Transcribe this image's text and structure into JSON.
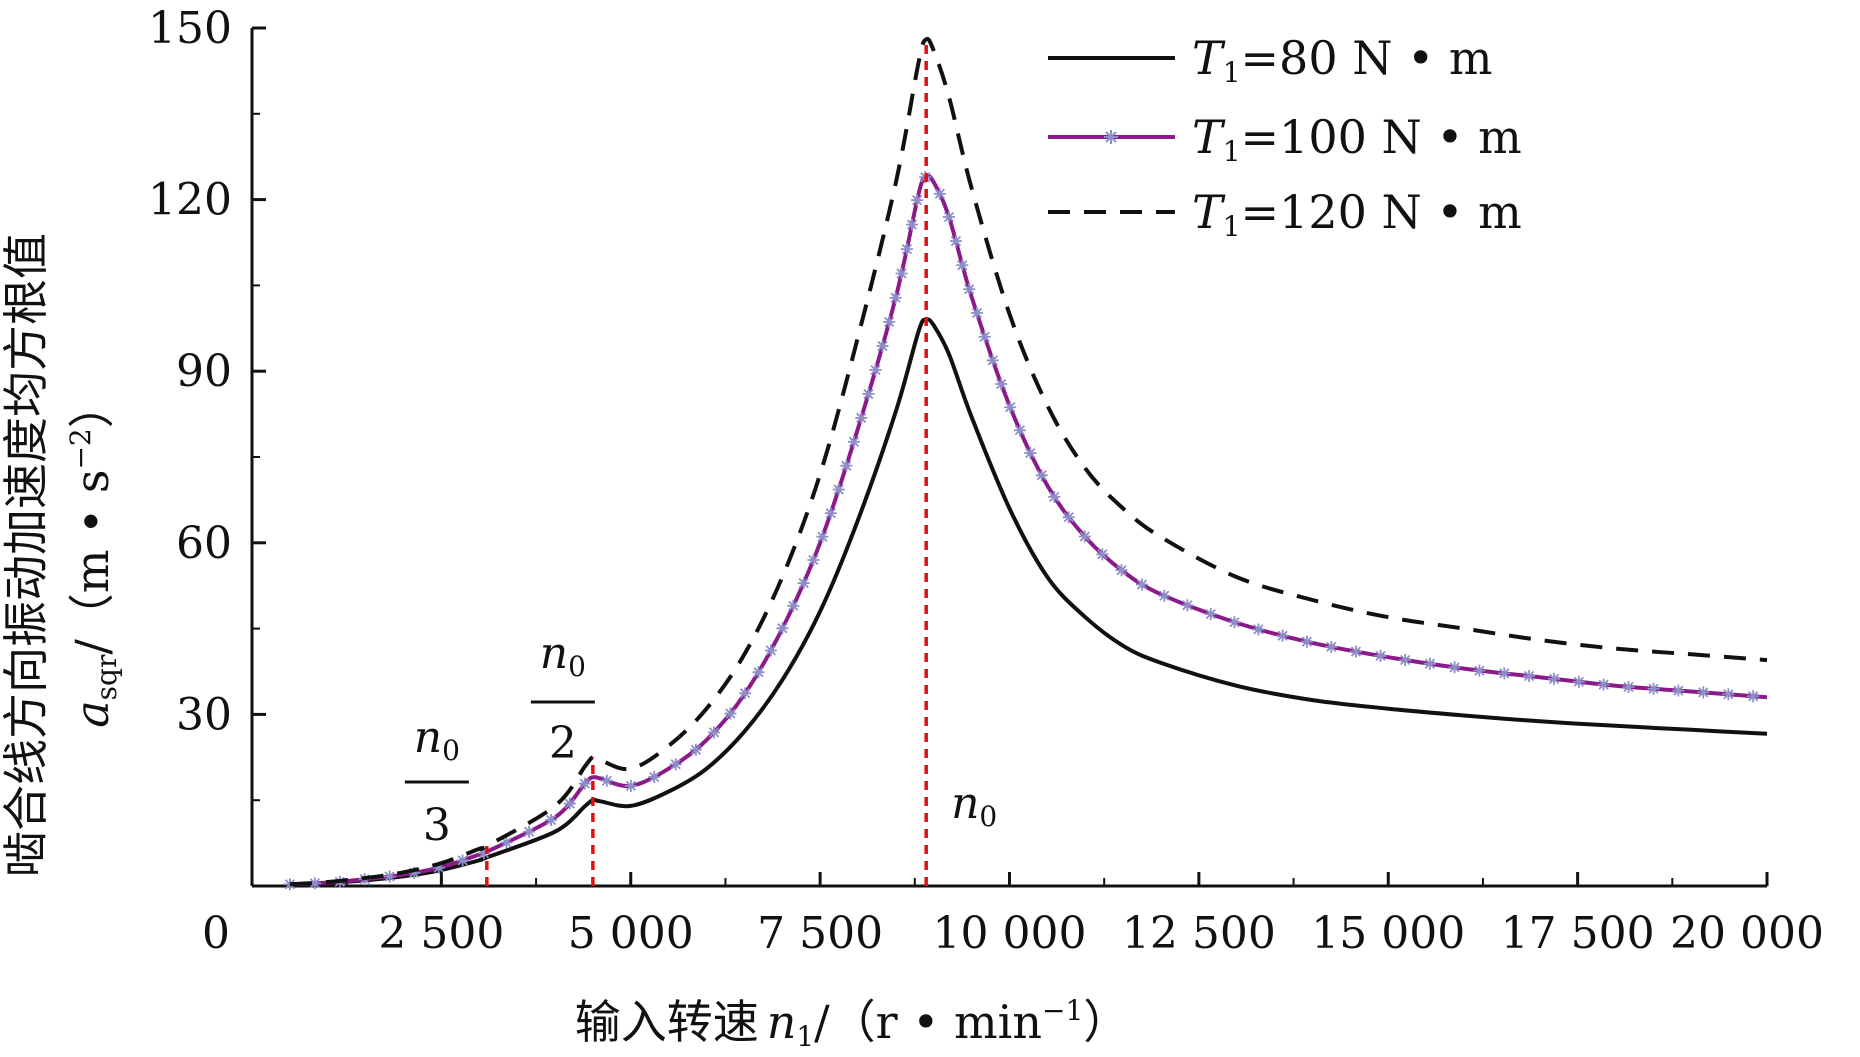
{
  "chart_data": {
    "type": "line",
    "xlabel": {
      "prefix": "输入转速",
      "var": "n",
      "sub": "1",
      "unit": "/（r • min",
      "sup": "−1",
      "close": "）"
    },
    "ylabel": {
      "prefix": "啮合线方向振动加速度均方根值",
      "var": "a",
      "sub": "sqr",
      "unit": "/（m • s",
      "sup": "−2",
      "close": "）"
    },
    "xlim": [
      0,
      20000
    ],
    "ylim": [
      0,
      150
    ],
    "x_ticks": [
      0,
      2500,
      5000,
      7500,
      10000,
      12500,
      15000,
      17500,
      20000
    ],
    "x_tick_labels": [
      "0",
      "2 500",
      "5 000",
      "7 500",
      "10 000",
      "12 500",
      "15 000",
      "17 500",
      "20 000"
    ],
    "y_ticks": [
      30,
      60,
      90,
      120,
      150
    ],
    "y_tick_labels": [
      "30",
      "60",
      "90",
      "120",
      "150"
    ],
    "grid": false,
    "legend_position": "top-right",
    "colors": {
      "s80": "#111111",
      "s100": "#8a1a8a",
      "s100_marker": "#8e8ec8",
      "s120": "#111111",
      "vline": "#e01010"
    },
    "series": [
      {
        "name_var": "T",
        "name_sub": "1",
        "name_rest": "=80 N • m",
        "style": "solid",
        "x": [
          500,
          1000,
          1500,
          2000,
          2500,
          3000,
          3100,
          4000,
          4400,
          4500,
          4600,
          5000,
          5500,
          6000,
          6500,
          7000,
          7500,
          8000,
          8500,
          8800,
          8900,
          9000,
          9200,
          9500,
          10000,
          10500,
          11000,
          11500,
          12000,
          13000,
          14000,
          15000,
          16000,
          17000,
          18000,
          19000,
          20000
        ],
        "y": [
          0.2,
          0.5,
          1.0,
          1.7,
          2.8,
          4.5,
          5.0,
          9.5,
          14.0,
          15.0,
          14.8,
          14.0,
          16.5,
          20.5,
          27.0,
          36.0,
          48.0,
          64.0,
          83.0,
          97.0,
          99.0,
          98.0,
          93.0,
          82.0,
          66.0,
          54.0,
          47.0,
          42.0,
          39.0,
          35.0,
          32.5,
          31.0,
          29.8,
          28.8,
          28.0,
          27.3,
          26.6
        ]
      },
      {
        "name_var": "T",
        "name_sub": "1",
        "name_rest": "=100 N • m",
        "style": "solid-marker",
        "x": [
          500,
          1000,
          1500,
          2000,
          2500,
          3000,
          3100,
          4000,
          4400,
          4500,
          4600,
          5000,
          5500,
          6000,
          6500,
          7000,
          7500,
          8000,
          8500,
          8800,
          8900,
          9000,
          9200,
          9500,
          10000,
          10500,
          11000,
          11500,
          12000,
          13000,
          14000,
          15000,
          16000,
          17000,
          18000,
          19000,
          20000
        ],
        "y": [
          0.3,
          0.6,
          1.2,
          2.0,
          3.3,
          5.5,
          6.0,
          12.0,
          18.0,
          19.0,
          18.8,
          17.5,
          20.5,
          25.5,
          33.5,
          45.0,
          60.0,
          80.0,
          103.0,
          121.0,
          124.0,
          123.0,
          117.0,
          103.0,
          84.0,
          70.0,
          61.0,
          55.0,
          51.0,
          46.0,
          42.5,
          40.0,
          38.0,
          36.5,
          35.0,
          34.0,
          33.0
        ]
      },
      {
        "name_var": "T",
        "name_sub": "1",
        "name_rest": "=120 N • m",
        "style": "dashed",
        "x": [
          500,
          1000,
          1500,
          2000,
          2500,
          3000,
          3100,
          4000,
          4400,
          4500,
          4600,
          5000,
          5500,
          6000,
          6500,
          7000,
          7500,
          8000,
          8500,
          8800,
          8900,
          9000,
          9200,
          9500,
          10000,
          10500,
          11000,
          11500,
          12000,
          13000,
          14000,
          15000,
          16000,
          17000,
          18000,
          19000,
          20000
        ],
        "y": [
          0.3,
          0.7,
          1.4,
          2.4,
          4.0,
          6.5,
          7.0,
          14.0,
          21.0,
          22.5,
          22.0,
          20.5,
          24.5,
          31.0,
          40.5,
          54.0,
          72.0,
          96.0,
          123.0,
          144.0,
          148.0,
          146.0,
          138.0,
          122.0,
          100.0,
          84.0,
          73.0,
          66.0,
          61.0,
          54.0,
          50.0,
          47.0,
          45.0,
          43.0,
          41.5,
          40.5,
          39.5
        ]
      }
    ],
    "vlines": [
      3100,
      4500,
      8900
    ],
    "annotations": [
      {
        "x": 3100,
        "var": "n",
        "sub": "0",
        "den": "3"
      },
      {
        "x": 4500,
        "var": "n",
        "sub": "0",
        "den": "2"
      },
      {
        "x": 8900,
        "var": "n",
        "sub": "0",
        "den": ""
      }
    ]
  }
}
